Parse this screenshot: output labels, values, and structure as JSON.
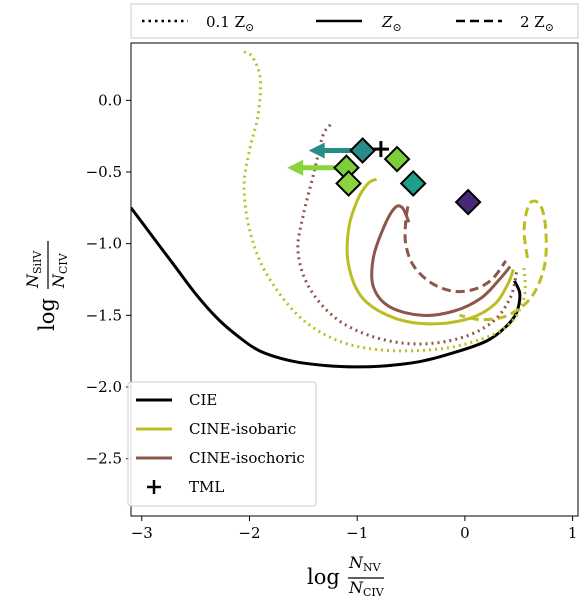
{
  "chart_data": {
    "type": "line",
    "xlabel": {
      "log": "log",
      "num": "N",
      "num_sub": "NV",
      "den": "N",
      "den_sub": "CIV"
    },
    "ylabel": {
      "log": "log",
      "num": "N",
      "num_sub": "SiIV",
      "den": "N",
      "den_sub": "CIV"
    },
    "xlim": [
      -3.1,
      1.05
    ],
    "ylim": [
      -2.9,
      0.4
    ],
    "xticks": [
      -3,
      -2,
      -1,
      0,
      1
    ],
    "xtick_labels": [
      "−3",
      "−2",
      "−1",
      "0",
      "1"
    ],
    "yticks": [
      0.0,
      -0.5,
      -1.0,
      -1.5,
      -2.0,
      -2.5
    ],
    "ytick_labels": [
      "0.0",
      "−0.5",
      "−1.0",
      "−1.5",
      "−2.0",
      "−2.5"
    ],
    "metallicity_legend": [
      {
        "label": "0.1 Z",
        "sub": "⊙",
        "style": "dotted"
      },
      {
        "label": "Z",
        "sub": "⊙",
        "style": "solid"
      },
      {
        "label": "2 Z",
        "sub": "⊙",
        "style": "dashed"
      }
    ],
    "model_legend": {
      "location": "lower left",
      "entries": [
        {
          "label": "CIE",
          "color": "#000000",
          "marker": "line"
        },
        {
          "label": "CINE-isobaric",
          "color": "#bcbd22",
          "marker": "line"
        },
        {
          "label": "CINE-isochoric",
          "color": "#8c564b",
          "marker": "line"
        },
        {
          "label": "TML",
          "color": "#000000",
          "marker": "plus"
        }
      ]
    },
    "series": [
      {
        "model": "CIE",
        "metallicity": "Z",
        "style": "solid",
        "color": "#000000",
        "points": [
          [
            -3.1,
            -0.75
          ],
          [
            -2.9,
            -0.95
          ],
          [
            -2.7,
            -1.15
          ],
          [
            -2.5,
            -1.35
          ],
          [
            -2.3,
            -1.52
          ],
          [
            -2.1,
            -1.65
          ],
          [
            -1.9,
            -1.75
          ],
          [
            -1.6,
            -1.82
          ],
          [
            -1.3,
            -1.85
          ],
          [
            -1.0,
            -1.86
          ],
          [
            -0.7,
            -1.85
          ],
          [
            -0.4,
            -1.82
          ],
          [
            -0.1,
            -1.76
          ],
          [
            0.2,
            -1.68
          ],
          [
            0.38,
            -1.58
          ],
          [
            0.48,
            -1.48
          ],
          [
            0.51,
            -1.35
          ],
          [
            0.46,
            -1.26
          ]
        ]
      },
      {
        "model": "CINE-isobaric",
        "metallicity": "0.1 Z",
        "style": "dotted",
        "color": "#bcbd22",
        "points": [
          [
            -2.05,
            0.34
          ],
          [
            -1.97,
            0.3
          ],
          [
            -1.9,
            0.15
          ],
          [
            -1.92,
            -0.1
          ],
          [
            -2.0,
            -0.35
          ],
          [
            -2.05,
            -0.6
          ],
          [
            -2.0,
            -0.9
          ],
          [
            -1.85,
            -1.2
          ],
          [
            -1.55,
            -1.5
          ],
          [
            -1.2,
            -1.67
          ],
          [
            -0.8,
            -1.74
          ],
          [
            -0.3,
            -1.74
          ],
          [
            0.1,
            -1.68
          ],
          [
            0.4,
            -1.57
          ],
          [
            0.55,
            -1.38
          ],
          [
            0.55,
            -1.17
          ]
        ]
      },
      {
        "model": "CINE-isobaric",
        "metallicity": "Z",
        "style": "solid",
        "color": "#bcbd22",
        "points": [
          [
            -0.82,
            -0.55
          ],
          [
            -0.9,
            -0.58
          ],
          [
            -1.0,
            -0.7
          ],
          [
            -1.08,
            -0.9
          ],
          [
            -1.08,
            -1.15
          ],
          [
            -0.95,
            -1.38
          ],
          [
            -0.65,
            -1.52
          ],
          [
            -0.3,
            -1.56
          ],
          [
            0.05,
            -1.52
          ],
          [
            0.28,
            -1.42
          ],
          [
            0.4,
            -1.28
          ],
          [
            0.45,
            -1.18
          ]
        ]
      },
      {
        "model": "CINE-isobaric",
        "metallicity": "2 Z",
        "style": "dashed",
        "color": "#bcbd22",
        "points": [
          [
            0.58,
            -1.1
          ],
          [
            0.55,
            -0.9
          ],
          [
            0.6,
            -0.72
          ],
          [
            0.7,
            -0.73
          ],
          [
            0.75,
            -0.9
          ],
          [
            0.74,
            -1.15
          ],
          [
            0.62,
            -1.37
          ],
          [
            0.4,
            -1.5
          ],
          [
            0.15,
            -1.53
          ],
          [
            -0.05,
            -1.5
          ]
        ]
      },
      {
        "model": "CINE-isochoric",
        "metallicity": "0.1 Z",
        "style": "dotted",
        "color": "#8c564b",
        "points": [
          [
            -1.25,
            -0.17
          ],
          [
            -1.32,
            -0.25
          ],
          [
            -1.4,
            -0.5
          ],
          [
            -1.5,
            -0.8
          ],
          [
            -1.55,
            -1.05
          ],
          [
            -1.45,
            -1.3
          ],
          [
            -1.2,
            -1.52
          ],
          [
            -0.85,
            -1.65
          ],
          [
            -0.45,
            -1.7
          ],
          [
            -0.05,
            -1.66
          ],
          [
            0.25,
            -1.55
          ],
          [
            0.42,
            -1.38
          ],
          [
            0.48,
            -1.2
          ]
        ]
      },
      {
        "model": "CINE-isochoric",
        "metallicity": "Z",
        "style": "solid",
        "color": "#8c564b",
        "points": [
          [
            -0.52,
            -0.85
          ],
          [
            -0.58,
            -0.75
          ],
          [
            -0.65,
            -0.75
          ],
          [
            -0.75,
            -0.88
          ],
          [
            -0.85,
            -1.1
          ],
          [
            -0.85,
            -1.3
          ],
          [
            -0.7,
            -1.44
          ],
          [
            -0.4,
            -1.5
          ],
          [
            -0.1,
            -1.47
          ],
          [
            0.15,
            -1.38
          ],
          [
            0.32,
            -1.25
          ],
          [
            0.42,
            -1.16
          ]
        ]
      },
      {
        "model": "CINE-isochoric",
        "metallicity": "2 Z",
        "style": "dashed",
        "color": "#8c564b",
        "points": [
          [
            -0.53,
            -0.74
          ],
          [
            -0.55,
            -0.85
          ],
          [
            -0.55,
            -1.0
          ],
          [
            -0.48,
            -1.15
          ],
          [
            -0.32,
            -1.27
          ],
          [
            -0.12,
            -1.33
          ],
          [
            0.08,
            -1.32
          ],
          [
            0.25,
            -1.25
          ],
          [
            0.38,
            -1.12
          ]
        ]
      }
    ],
    "diamonds": [
      {
        "x": -0.95,
        "y": -0.35,
        "color": "#2a8c8a"
      },
      {
        "x": -1.1,
        "y": -0.47,
        "color": "#7ccf3a"
      },
      {
        "x": -1.08,
        "y": -0.58,
        "color": "#8ad43d"
      },
      {
        "x": -0.63,
        "y": -0.41,
        "color": "#7ccf3a"
      },
      {
        "x": -0.48,
        "y": -0.58,
        "color": "#1f9e89"
      },
      {
        "x": 0.03,
        "y": -0.71,
        "color": "#482878"
      }
    ],
    "arrows": [
      {
        "x_from": -0.95,
        "x_to": -1.45,
        "y": -0.35,
        "color": "#2a8c8a"
      },
      {
        "x_from": -1.1,
        "x_to": -1.65,
        "y": -0.47,
        "color": "#8ad43d"
      }
    ],
    "tml_marker": {
      "x": -0.78,
      "y": -0.34
    },
    "grid": false
  }
}
